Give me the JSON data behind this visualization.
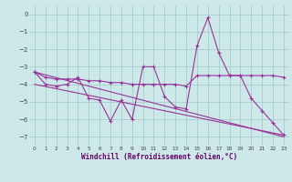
{
  "background_color": "#cce8e8",
  "grid_color": "#aacccc",
  "line_color": "#993399",
  "xlabel": "Windchill (Refroidissement éolien,°C)",
  "xlim": [
    -0.5,
    23.5
  ],
  "ylim": [
    -7.5,
    0.5
  ],
  "yticks": [
    0,
    -1,
    -2,
    -3,
    -4,
    -5,
    -6,
    -7
  ],
  "xticks": [
    0,
    1,
    2,
    3,
    4,
    5,
    6,
    7,
    8,
    9,
    10,
    11,
    12,
    13,
    14,
    15,
    16,
    17,
    18,
    19,
    20,
    21,
    22,
    23
  ],
  "series1_x": [
    0,
    1,
    2,
    3,
    4,
    5,
    6,
    7,
    8,
    9,
    10,
    11,
    12,
    13,
    14,
    15,
    16,
    17,
    18,
    19,
    20,
    21,
    22,
    23
  ],
  "series1_y": [
    -3.3,
    -4.0,
    -4.1,
    -4.0,
    -3.6,
    -4.8,
    -4.9,
    -6.1,
    -4.9,
    -6.0,
    -3.0,
    -3.0,
    -4.7,
    -5.3,
    -5.4,
    -1.8,
    -0.2,
    -2.2,
    -3.5,
    -3.5,
    -4.8,
    -5.5,
    -6.2,
    -6.9
  ],
  "series2_x": [
    0,
    1,
    2,
    3,
    4,
    5,
    6,
    7,
    8,
    9,
    10,
    11,
    12,
    13,
    14,
    15,
    16,
    17,
    18,
    19,
    20,
    21,
    22,
    23
  ],
  "series2_y": [
    -3.3,
    -3.6,
    -3.7,
    -3.7,
    -3.7,
    -3.8,
    -3.8,
    -3.9,
    -3.9,
    -4.0,
    -4.0,
    -4.0,
    -4.0,
    -4.0,
    -4.1,
    -3.5,
    -3.5,
    -3.5,
    -3.5,
    -3.5,
    -3.5,
    -3.5,
    -3.5,
    -3.6
  ],
  "series3_x": [
    0,
    23
  ],
  "series3_y": [
    -3.3,
    -7.0
  ],
  "series4_x": [
    0,
    23
  ],
  "series4_y": [
    -4.0,
    -6.9
  ]
}
